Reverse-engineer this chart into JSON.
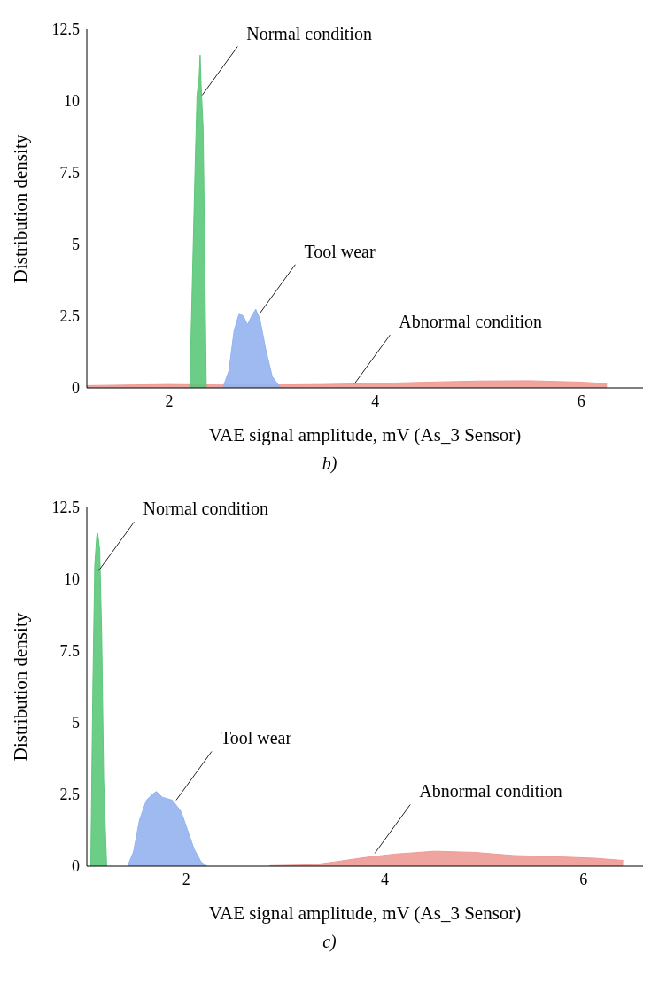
{
  "chart_data": [
    {
      "type": "area",
      "xlabel": "VAE signal amplitude, mV (As_3 Sensor)",
      "ylabel": "Distribution density",
      "xlim": [
        1.2,
        6.6
      ],
      "xticks": [
        2,
        4,
        6
      ],
      "ylim": [
        0,
        12.5
      ],
      "yticks": [
        0,
        2.5,
        5,
        7.5,
        10,
        12.5
      ],
      "legend": false,
      "grid": false,
      "series": [
        {
          "color": "#ee9a96",
          "x": [
            1.2,
            1.6,
            2.0,
            2.5,
            3.0,
            3.5,
            4.0,
            4.5,
            5.0,
            5.5,
            6.0,
            6.25
          ],
          "values": [
            0.08,
            0.1,
            0.12,
            0.1,
            0.1,
            0.12,
            0.15,
            0.2,
            0.24,
            0.25,
            0.2,
            0.15
          ]
        },
        {
          "color": "#93b3ee",
          "x": [
            2.52,
            2.58,
            2.63,
            2.68,
            2.72,
            2.76,
            2.8,
            2.84,
            2.88,
            2.94,
            3.0,
            3.08
          ],
          "values": [
            0,
            0.6,
            2.0,
            2.6,
            2.5,
            2.2,
            2.5,
            2.74,
            2.4,
            1.3,
            0.4,
            0
          ]
        },
        {
          "color": "#5cc87a",
          "x": [
            2.2,
            2.22,
            2.25,
            2.27,
            2.29,
            2.3,
            2.31,
            2.33,
            2.35,
            2.36
          ],
          "values": [
            0,
            3,
            7.5,
            10.2,
            10.8,
            11.6,
            10.5,
            9,
            3,
            0
          ]
        }
      ],
      "annotations": [
        {
          "text": "Normal condition",
          "x": 2.32,
          "y": 10.2
        },
        {
          "text": "Tool wear",
          "x": 2.88,
          "y": 2.6
        },
        {
          "text": "Abnormal condition",
          "x": 3.8,
          "y": 0.15
        },
        "b)"
      ]
    },
    {
      "type": "area",
      "xlabel": "VAE signal amplitude, mV (As_3 Sensor)",
      "ylabel": "Distribution density",
      "xlim": [
        1.0,
        6.6
      ],
      "xticks": [
        2,
        4,
        6
      ],
      "ylim": [
        0,
        12.5
      ],
      "yticks": [
        0,
        2.5,
        5,
        7.5,
        10,
        12.5
      ],
      "legend": false,
      "grid": false,
      "series": [
        {
          "color": "#ee9a96",
          "x": [
            2.84,
            3.28,
            3.5,
            3.8,
            4.1,
            4.5,
            4.9,
            5.3,
            5.7,
            6.1,
            6.4
          ],
          "values": [
            0.02,
            0.05,
            0.15,
            0.3,
            0.42,
            0.52,
            0.48,
            0.37,
            0.33,
            0.28,
            0.2
          ]
        },
        {
          "color": "#93b3ee",
          "x": [
            1.41,
            1.47,
            1.53,
            1.6,
            1.66,
            1.7,
            1.76,
            1.86,
            1.95,
            2.01,
            2.08,
            2.15,
            2.21
          ],
          "values": [
            0,
            0.5,
            1.6,
            2.3,
            2.5,
            2.6,
            2.4,
            2.3,
            1.9,
            1.3,
            0.6,
            0.15,
            0
          ]
        },
        {
          "color": "#5cc87a",
          "x": [
            1.04,
            1.06,
            1.08,
            1.1,
            1.11,
            1.13,
            1.15,
            1.17,
            1.2
          ],
          "values": [
            0,
            6,
            10.5,
            11.5,
            11.6,
            11,
            8,
            3,
            0
          ]
        }
      ],
      "annotations": [
        {
          "text": "Normal condition",
          "x": 1.12,
          "y": 10.3
        },
        {
          "text": "Tool wear",
          "x": 1.9,
          "y": 2.3
        },
        {
          "text": "Abnormal condition",
          "x": 3.9,
          "y": 0.45
        },
        "c)"
      ]
    }
  ]
}
